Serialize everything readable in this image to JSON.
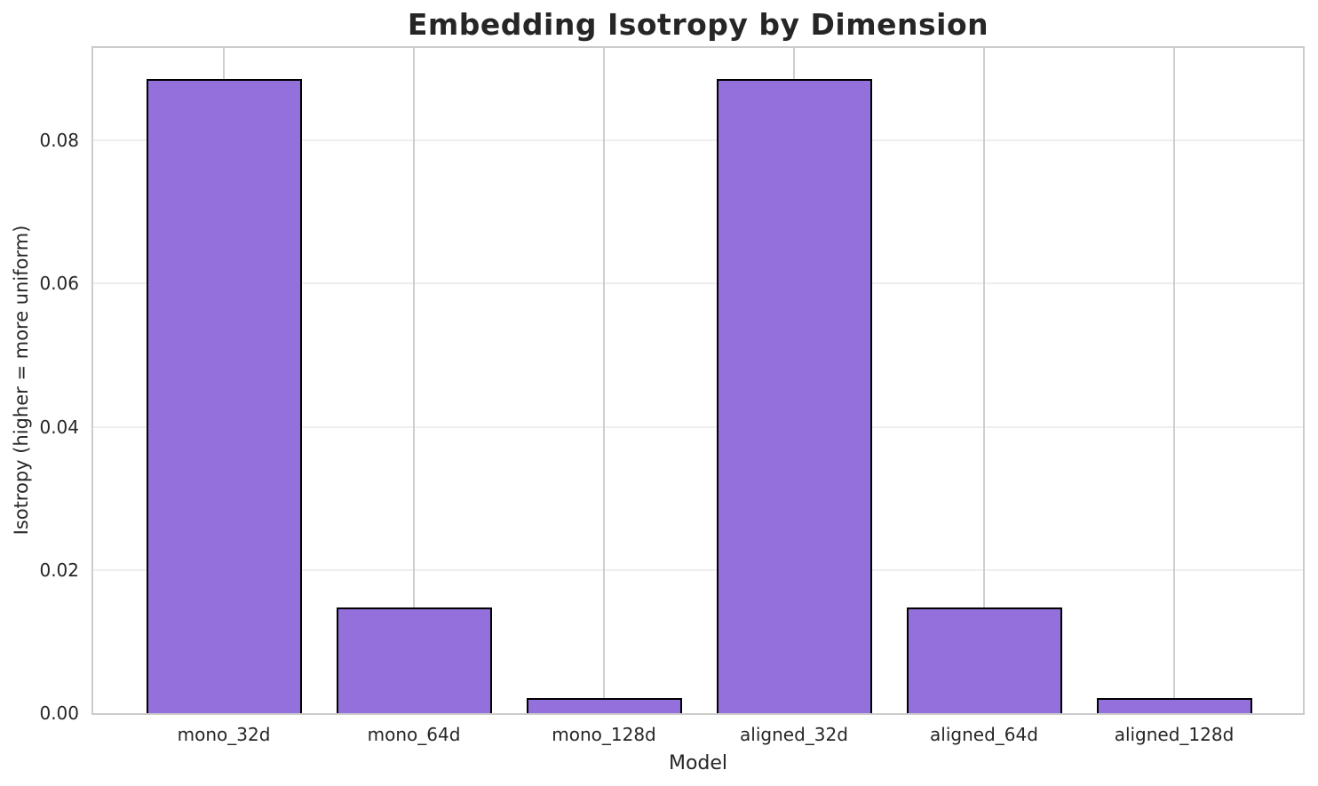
{
  "chart_data": {
    "type": "bar",
    "title": "Embedding Isotropy by Dimension",
    "xlabel": "Model",
    "ylabel": "Isotropy (higher = more uniform)",
    "categories": [
      "mono_32d",
      "mono_64d",
      "mono_128d",
      "aligned_32d",
      "aligned_64d",
      "aligned_128d"
    ],
    "values": [
      0.0885,
      0.0147,
      0.0021,
      0.0885,
      0.0147,
      0.0021
    ],
    "ylim": [
      0,
      0.0929
    ],
    "yticks": [
      0,
      0.02,
      0.04,
      0.06,
      0.08
    ],
    "ytick_labels": [
      "0.00",
      "0.02",
      "0.04",
      "0.06",
      "0.08"
    ],
    "grid": true,
    "legend_position": "none",
    "bar_color": "#9370DB",
    "bar_edge_color": "#000000",
    "background_color": "#ffffff",
    "hgrid_color": "#eeeeee",
    "vgrid_color": "#cfcfcf",
    "spine_color": "#cccccc",
    "text_color": "#262626"
  }
}
